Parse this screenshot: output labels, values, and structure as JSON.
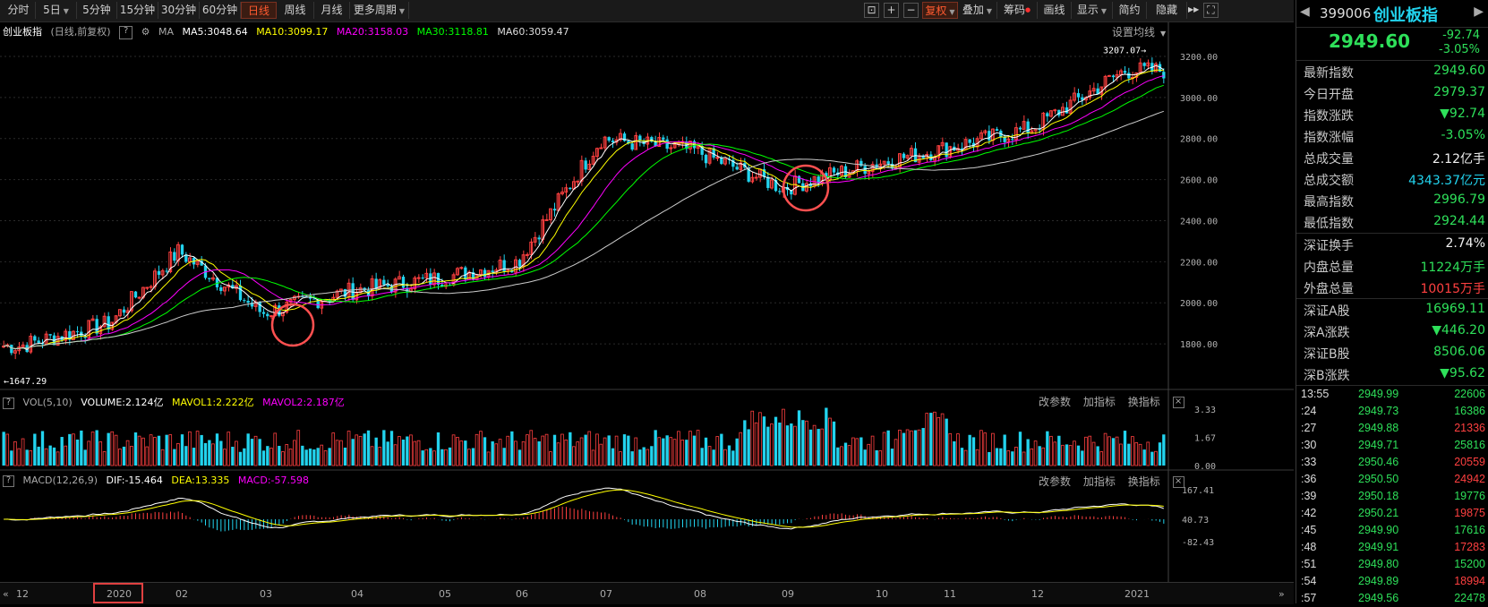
{
  "toolbar": {
    "periods": [
      {
        "label": "分时",
        "dd": false
      },
      {
        "label": "5日",
        "dd": true
      },
      {
        "label": "5分钟",
        "dd": false
      },
      {
        "label": "15分钟",
        "dd": false
      },
      {
        "label": "30分钟",
        "dd": false
      },
      {
        "label": "60分钟",
        "dd": false
      },
      {
        "label": "日线",
        "dd": false,
        "active": true
      },
      {
        "label": "周线",
        "dd": false
      },
      {
        "label": "月线",
        "dd": false
      },
      {
        "label": "更多周期",
        "dd": true
      }
    ],
    "icons": [
      "lock-icon",
      "plus-icon",
      "minus-icon"
    ],
    "right_buttons": [
      {
        "label": "复权",
        "dd": true,
        "active": true
      },
      {
        "label": "叠加",
        "dd": true
      },
      {
        "label": "筹码",
        "dd": false,
        "dot": true
      },
      {
        "label": "画线",
        "dd": false
      },
      {
        "label": "显示",
        "dd": true
      },
      {
        "label": "简约",
        "dd": false
      },
      {
        "label": "隐藏",
        "dd": false
      }
    ]
  },
  "main_legend": {
    "name": "创业板指",
    "mode": "(日线,前复权)",
    "help": "?",
    "ma_label": "MA",
    "ma5": "MA5:3048.64",
    "ma10": "MA10:3099.17",
    "ma20": "MA20:3158.03",
    "ma30": "MA30:3118.81",
    "ma60": "MA60:3059.47",
    "settings": "设置均线"
  },
  "price_axis": [
    "3200.00",
    "3000.00",
    "2800.00",
    "2600.00",
    "2400.00",
    "2200.00",
    "2000.00",
    "1800.00"
  ],
  "markers": {
    "high": "3207.07",
    "low": "1647.29"
  },
  "vol_legend": {
    "name": "VOL(5,10)",
    "volume": "VOLUME:2.124亿",
    "mavol1": "MAVOL1:2.222亿",
    "mavol2": "MAVOL2:2.187亿",
    "ticks": [
      "3.33",
      "1.67",
      "0.00"
    ]
  },
  "macd_legend": {
    "name": "MACD(12,26,9)",
    "dif": "DIF:-15.464",
    "dea": "DEA:13.335",
    "macd": "MACD:-57.598",
    "ticks": [
      "167.41",
      "40.73",
      "-82.43"
    ]
  },
  "panel_controls": {
    "params": "改参数",
    "add": "加指标",
    "swap": "换指标",
    "close": "×"
  },
  "time_axis": [
    "12",
    "2020",
    "02",
    "03",
    "04",
    "05",
    "06",
    "07",
    "08",
    "09",
    "10",
    "11",
    "12",
    "2021"
  ],
  "chart_data": {
    "type": "candlestick",
    "ylim": [
      1600,
      3300
    ],
    "monthly_close": [
      1790,
      1900,
      2250,
      1950,
      2060,
      2120,
      2200,
      2800,
      2740,
      2560,
      2680,
      2750,
      2850,
      3130
    ],
    "ma_colors": {
      "ma5": "#ffffff",
      "ma10": "#ffff00",
      "ma20": "#ff00ff",
      "ma30": "#00ff00",
      "ma60": "#cccccc"
    }
  },
  "right_panel": {
    "code": "399006",
    "name": "创业板指",
    "price": "2949.60",
    "change": "-92.74",
    "change_pct": "-3.05%",
    "quotes": [
      {
        "label": "最新指数",
        "value": "2949.60",
        "cls": "down"
      },
      {
        "label": "今日开盘",
        "value": "2979.37",
        "cls": "down"
      },
      {
        "label": "指数涨跌",
        "value": "▼92.74",
        "cls": "down"
      },
      {
        "label": "指数涨幅",
        "value": "-3.05%",
        "cls": "down"
      },
      {
        "label": "总成交量",
        "value": "2.12亿手",
        "cls": "white"
      },
      {
        "label": "总成交额",
        "value": "4343.37亿元",
        "cls": "cyan"
      },
      {
        "label": "最高指数",
        "value": "2996.79",
        "cls": "down"
      },
      {
        "label": "最低指数",
        "value": "2924.44",
        "cls": "down"
      },
      {
        "label": "深证换手",
        "value": "2.74%",
        "cls": "white",
        "sep": true
      },
      {
        "label": "内盘总量",
        "value": "11224万手",
        "cls": "down"
      },
      {
        "label": "外盘总量",
        "value": "10015万手",
        "cls": "up"
      },
      {
        "label": "深证A股",
        "value": "16969.11",
        "cls": "down",
        "sep": true
      },
      {
        "label": "深A涨跌",
        "value": "▼446.20",
        "cls": "down"
      },
      {
        "label": "深证B股",
        "value": "8506.06",
        "cls": "down"
      },
      {
        "label": "深B涨跌",
        "value": "▼95.62",
        "cls": "down"
      }
    ],
    "ticks": [
      {
        "t": "13:55",
        "p": "2949.99",
        "v": "22606",
        "cls": "down"
      },
      {
        "t": ":24",
        "p": "2949.73",
        "v": "16386",
        "cls": "down"
      },
      {
        "t": ":27",
        "p": "2949.88",
        "v": "21336",
        "cls": "up"
      },
      {
        "t": ":30",
        "p": "2949.71",
        "v": "25816",
        "cls": "down"
      },
      {
        "t": ":33",
        "p": "2950.46",
        "v": "20559",
        "cls": "up"
      },
      {
        "t": ":36",
        "p": "2950.50",
        "v": "24942",
        "cls": "up"
      },
      {
        "t": ":39",
        "p": "2950.18",
        "v": "19776",
        "cls": "down"
      },
      {
        "t": ":42",
        "p": "2950.21",
        "v": "19875",
        "cls": "up"
      },
      {
        "t": ":45",
        "p": "2949.90",
        "v": "17616",
        "cls": "down"
      },
      {
        "t": ":48",
        "p": "2949.91",
        "v": "17283",
        "cls": "up"
      },
      {
        "t": ":51",
        "p": "2949.80",
        "v": "15200",
        "cls": "down"
      },
      {
        "t": ":54",
        "p": "2949.89",
        "v": "18994",
        "cls": "up"
      },
      {
        "t": ":57",
        "p": "2949.56",
        "v": "22478",
        "cls": "down"
      }
    ]
  }
}
